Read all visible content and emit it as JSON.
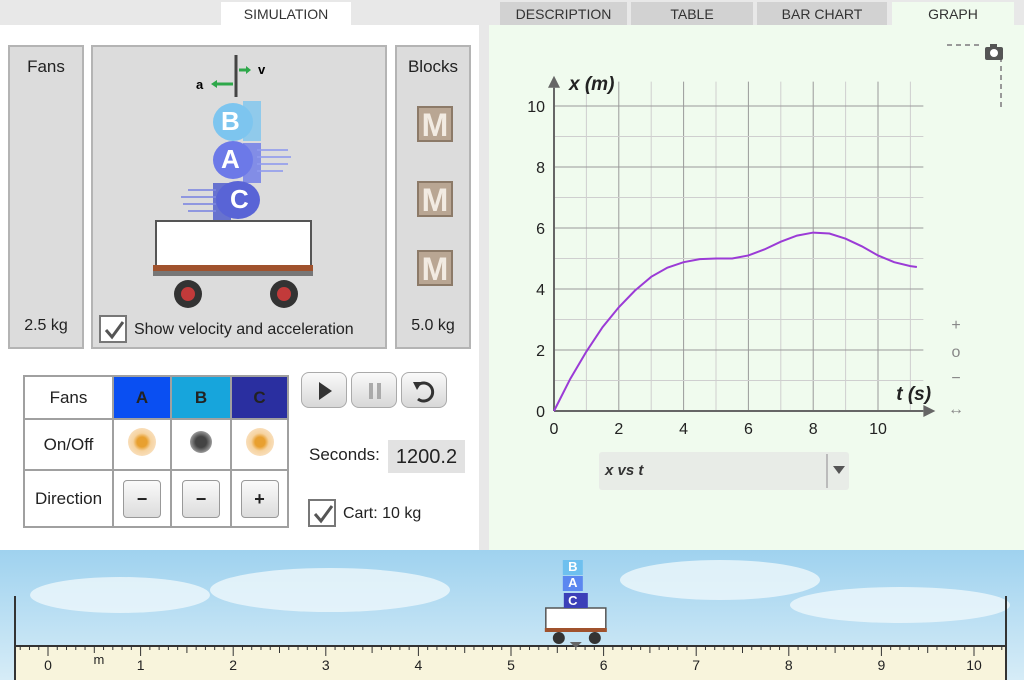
{
  "tabs": [
    {
      "label": "SIMULATION",
      "active": true
    },
    {
      "label": "DESCRIPTION",
      "active": false
    },
    {
      "label": "TABLE",
      "active": false
    },
    {
      "label": "BAR CHART",
      "active": false
    },
    {
      "label": "GRAPH",
      "active": false
    }
  ],
  "simulation": {
    "fans_label": "Fans",
    "fans_mass": "2.5 kg",
    "blocks_label": "Blocks",
    "blocks_mass": "5.0 kg",
    "block_letter": "M",
    "vector_a": "a",
    "vector_v": "v",
    "stack_letters": [
      "B",
      "A",
      "C"
    ],
    "show_vectors_label": "Show velocity and acceleration",
    "show_vectors_checked": true
  },
  "fan_table": {
    "header": [
      "Fans",
      "A",
      "B",
      "C"
    ],
    "header_colors": [
      "#ffffff",
      "#0a4ff2",
      "#17a5dc",
      "#2a2fa0"
    ],
    "onoff_label": "On/Off",
    "onoff_states": [
      true,
      false,
      true
    ],
    "direction_label": "Direction",
    "direction_values": [
      "−",
      "−",
      "+"
    ]
  },
  "controls": {
    "play": "play-icon",
    "pause": "pause-icon",
    "reset": "reset-icon",
    "seconds_label": "Seconds:",
    "seconds_value": "1200.2",
    "cart_label": "Cart: 10 kg",
    "cart_checked": true
  },
  "graph": {
    "zoom_in": "+",
    "zoom_reset": "o",
    "zoom_out": "−",
    "pan": "↔",
    "dropdown_label": "x vs t",
    "camera": "camera-icon"
  },
  "chart_data": {
    "type": "line",
    "xlabel": "t (s)",
    "ylabel": "x (m)",
    "xlim": [
      0,
      11.2
    ],
    "ylim": [
      0,
      10.8
    ],
    "xticks": [
      0,
      2,
      4,
      6,
      8,
      10
    ],
    "yticks": [
      0,
      2,
      4,
      6,
      8,
      10
    ],
    "grid": true,
    "color": "#9b3bd6",
    "series": [
      {
        "x": [
          0,
          0.5,
          1,
          1.5,
          2,
          2.5,
          3,
          3.5,
          4,
          4.5,
          5,
          5.5,
          6,
          6.5,
          7,
          7.5,
          8,
          8.5,
          9,
          9.5,
          10,
          10.5,
          11,
          11.2
        ],
        "y": [
          0,
          1.05,
          1.95,
          2.75,
          3.4,
          3.95,
          4.4,
          4.7,
          4.88,
          4.98,
          5.0,
          5.0,
          5.1,
          5.3,
          5.55,
          5.75,
          5.85,
          5.82,
          5.65,
          5.4,
          5.1,
          4.88,
          4.75,
          4.72
        ]
      }
    ]
  },
  "track": {
    "unit": "m",
    "labels": [
      "0",
      "1",
      "2",
      "3",
      "4",
      "5",
      "6",
      "7",
      "8",
      "9",
      "10"
    ],
    "cart_position_m": 5.7
  }
}
